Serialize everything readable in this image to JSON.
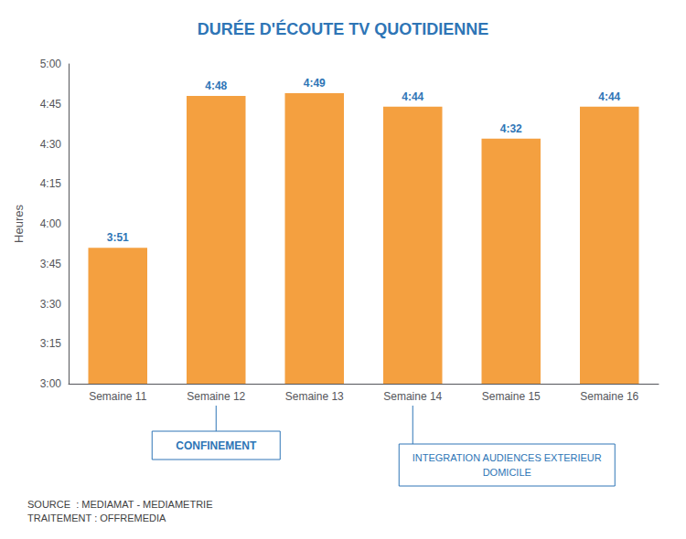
{
  "chart_data": {
    "type": "bar",
    "title": "DURÉE D'ÉCOUTE TV QUOTIDIENNE",
    "categories": [
      "Semaine 11",
      "Semaine 12",
      "Semaine 13",
      "Semaine 14",
      "Semaine 15",
      "Semaine 16"
    ],
    "values": [
      231,
      288,
      289,
      284,
      272,
      284
    ],
    "value_labels": [
      "3:51",
      "4:48",
      "4:49",
      "4:44",
      "4:32",
      "4:44"
    ],
    "data_labels": true,
    "color": "#F4A040",
    "ylabel": "Heures",
    "ylim": [
      180,
      300
    ],
    "yticks": [
      {
        "value": 180,
        "label": "3:00"
      },
      {
        "value": 195,
        "label": "3:15"
      },
      {
        "value": 210,
        "label": "3:30"
      },
      {
        "value": 225,
        "label": "3:45"
      },
      {
        "value": 240,
        "label": "4:00"
      },
      {
        "value": 255,
        "label": "4:15"
      },
      {
        "value": 270,
        "label": "4:30"
      },
      {
        "value": 285,
        "label": "4:45"
      },
      {
        "value": 300,
        "label": "5:00"
      }
    ],
    "grid": false,
    "annotations": [
      {
        "text": "CONFINEMENT",
        "x": "Semaine 12"
      },
      {
        "text": "INTEGRATION AUDIENCES EXTERIEUR\nDOMICILE",
        "x": "Semaine 14"
      }
    ],
    "source": "SOURCE  : MEDIAMAT - MEDIAMETRIE\nTRAITEMENT : OFFREMEDIA"
  }
}
